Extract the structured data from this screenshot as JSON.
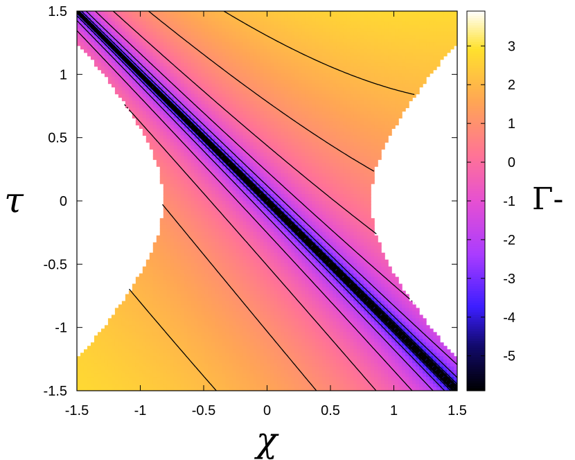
{
  "chart_data": {
    "type": "heatmap",
    "title": "",
    "xlabel": "χ",
    "ylabel": "τ",
    "colorbar_label": "Γ-",
    "xlim": [
      -1.5,
      1.5
    ],
    "ylim": [
      -1.5,
      1.5
    ],
    "x_ticks": [
      "-1.5",
      "-1",
      "-0.5",
      "0",
      "0.5",
      "1",
      "1.5"
    ],
    "y_ticks": [
      "-1.5",
      "-1",
      "-0.5",
      "0",
      "0.5",
      "1",
      "1.5"
    ],
    "x_tick_values": [
      -1.5,
      -1,
      -0.5,
      0,
      0.5,
      1,
      1.5
    ],
    "y_tick_values": [
      -1.5,
      -1,
      -0.5,
      0,
      0.5,
      1,
      1.5
    ],
    "colorbar_ticks": [
      "3",
      "2",
      "1",
      "0",
      "-1",
      "-2",
      "-3",
      "-4",
      "-5"
    ],
    "colorbar_tick_values": [
      3,
      2,
      1,
      0,
      -1,
      -2,
      -3,
      -4,
      -5
    ],
    "colorbar_range": [
      -5.9,
      3.9
    ],
    "colormap": "black-blue-purple-pink-orange-yellow-white",
    "domain_boundary": "chi^2 - tau^2 >= 0.67 excluded (white hyperbolic regions left and right)",
    "contour_levels": [
      -5.5,
      -5,
      -4.5,
      -4,
      -3,
      -2,
      -1,
      0,
      1,
      2,
      3
    ],
    "grid": false
  }
}
